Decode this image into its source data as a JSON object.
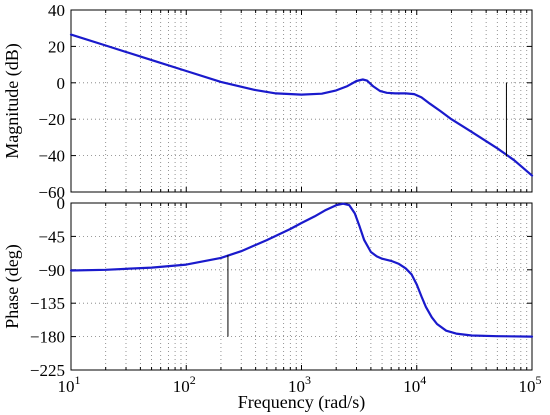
{
  "chart_data": [
    {
      "type": "line",
      "title": "",
      "xlabel": "",
      "ylabel": "Magnitude (dB)",
      "xscale": "log",
      "xlim": [
        10,
        100000
      ],
      "ylim": [
        -60,
        40
      ],
      "yticks": [
        40,
        20,
        0,
        -20,
        -40,
        -60
      ],
      "yticklabels": [
        "40",
        "20",
        "0",
        "−20",
        "−40",
        "−60"
      ],
      "grid": true,
      "series": [
        {
          "color": "#1a1acc",
          "x": [
            10,
            20,
            50,
            100,
            200,
            400,
            600,
            1000,
            1500,
            2000,
            2500,
            3000,
            3400,
            3700,
            4200,
            4800,
            5500,
            6500,
            8000,
            9500,
            11000,
            13000,
            16000,
            20000,
            30000,
            50000,
            70000,
            100000
          ],
          "y": [
            26.5,
            20.5,
            12.5,
            6.5,
            0.5,
            -4.0,
            -5.8,
            -6.5,
            -6.0,
            -4.2,
            -1.8,
            1.0,
            1.8,
            1.2,
            -2.0,
            -4.5,
            -5.5,
            -5.8,
            -5.8,
            -6.2,
            -8.0,
            -11.5,
            -15.5,
            -20.0,
            -27.0,
            -36.0,
            -42.5,
            -51.0
          ]
        }
      ],
      "markers": [
        {
          "x": 60000,
          "y_from": -40.5,
          "y_to": 0
        }
      ]
    },
    {
      "type": "line",
      "title": "",
      "xlabel": "Frequency (rad/s)",
      "ylabel": "Phase (deg)",
      "xscale": "log",
      "xlim": [
        10,
        100000
      ],
      "ylim": [
        -225,
        0
      ],
      "xticks": [
        {
          "value": 10,
          "base": "10",
          "exp": "1"
        },
        {
          "value": 100,
          "base": "10",
          "exp": "2"
        },
        {
          "value": 1000,
          "base": "10",
          "exp": "3"
        },
        {
          "value": 10000,
          "base": "10",
          "exp": "4"
        },
        {
          "value": 100000,
          "base": "10",
          "exp": "5"
        }
      ],
      "yticks": [
        0,
        -45,
        -90,
        -135,
        -180,
        -225
      ],
      "yticklabels": [
        "0",
        "−45",
        "−90",
        "−135",
        "−180",
        "−225"
      ],
      "grid": true,
      "series": [
        {
          "color": "#1a1acc",
          "x": [
            10,
            20,
            50,
            100,
            200,
            300,
            500,
            800,
            1000,
            1300,
            1600,
            2000,
            2300,
            2600,
            2900,
            3200,
            3500,
            4000,
            4500,
            5000,
            6000,
            7000,
            8000,
            9000,
            10000,
            11000,
            12000,
            13500,
            15000,
            18000,
            22000,
            30000,
            50000,
            100000
          ],
          "y": [
            -91,
            -90,
            -87,
            -83,
            -74,
            -65,
            -50,
            -35,
            -27,
            -18,
            -10,
            -3,
            -1,
            -3,
            -14,
            -32,
            -50,
            -66,
            -72,
            -75,
            -78,
            -82,
            -88,
            -96,
            -110,
            -126,
            -140,
            -154,
            -163,
            -172,
            -176,
            -178.5,
            -179.5,
            -180
          ]
        }
      ],
      "markers": [
        {
          "x": 230,
          "y_from": -70,
          "y_to": -180
        }
      ]
    }
  ]
}
